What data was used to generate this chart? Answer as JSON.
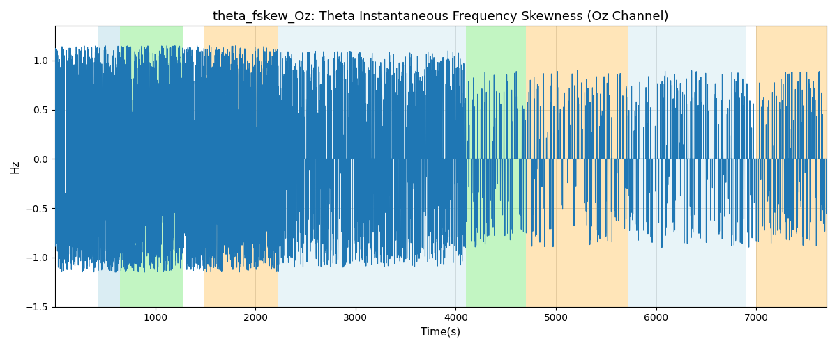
{
  "title": "theta_fskew_Oz: Theta Instantaneous Frequency Skewness (Oz Channel)",
  "xlabel": "Time(s)",
  "ylabel": "Hz",
  "xlim": [
    0,
    7700
  ],
  "ylim": [
    -1.5,
    1.35
  ],
  "line_color": "#1f77b4",
  "line_width": 0.8,
  "background_color": "#ffffff",
  "grid_color": "#cccccc",
  "bands": [
    {
      "xmin": 430,
      "xmax": 650,
      "color": "#add8e6",
      "alpha": 0.45
    },
    {
      "xmin": 650,
      "xmax": 1280,
      "color": "#90ee90",
      "alpha": 0.55
    },
    {
      "xmin": 1480,
      "xmax": 2230,
      "color": "#ffa500",
      "alpha": 0.28
    },
    {
      "xmin": 2230,
      "xmax": 4100,
      "color": "#add8e6",
      "alpha": 0.28
    },
    {
      "xmin": 4100,
      "xmax": 4700,
      "color": "#90ee90",
      "alpha": 0.55
    },
    {
      "xmin": 4700,
      "xmax": 5720,
      "color": "#ffa500",
      "alpha": 0.28
    },
    {
      "xmin": 5720,
      "xmax": 6900,
      "color": "#add8e6",
      "alpha": 0.28
    },
    {
      "xmin": 7000,
      "xmax": 7700,
      "color": "#ffa500",
      "alpha": 0.28
    }
  ],
  "title_fontsize": 13,
  "label_fontsize": 11,
  "tick_fontsize": 10,
  "figsize": [
    12,
    5
  ],
  "dpi": 100,
  "seed": 42,
  "n_points": 7700
}
